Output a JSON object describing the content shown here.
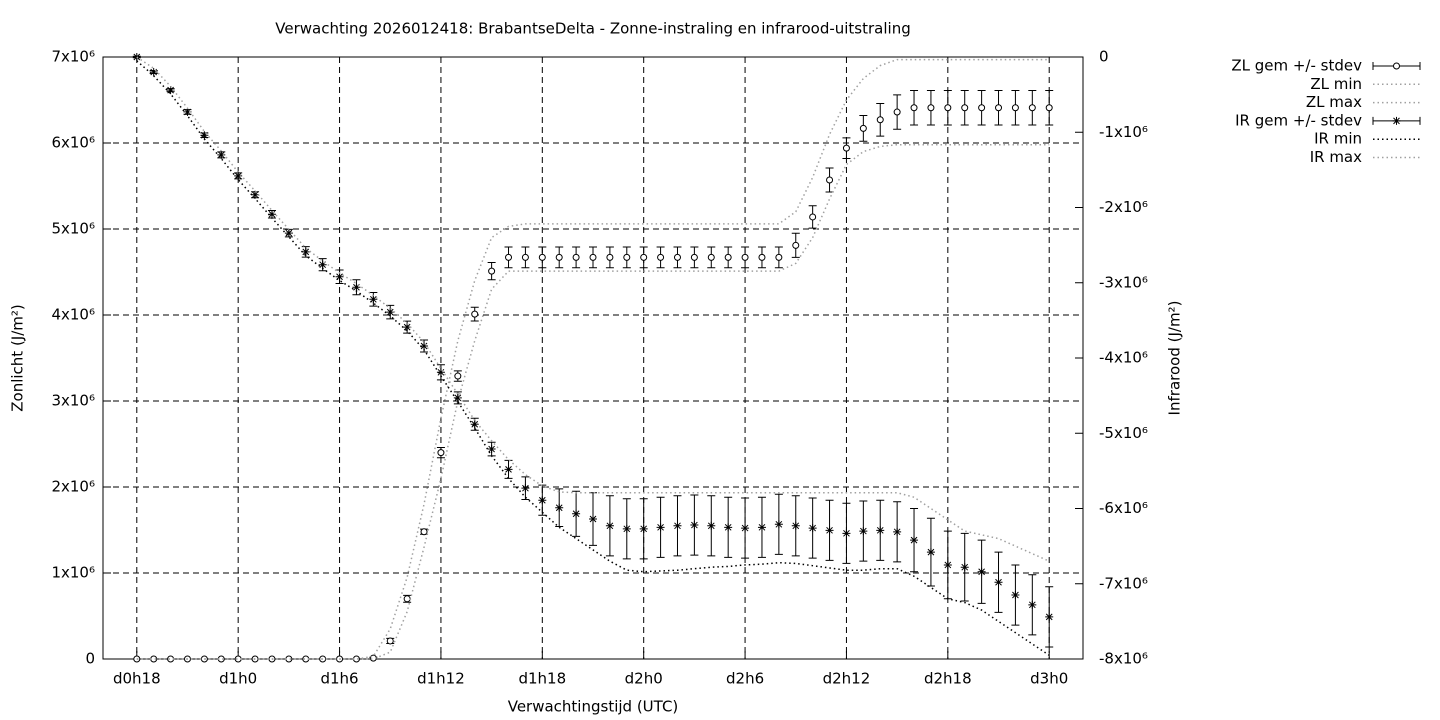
{
  "chart_data": {
    "type": "errorbar",
    "title": "Verwachting 2026012418: BrabantseDelta - Zonne-instraling en infrarood-uitstraling",
    "xlabel": "Verwachtingstijd (UTC)",
    "ylabel": "Zonlicht (J/m²)",
    "y2label": "Infrarood (J/m²)",
    "grid": true,
    "legend": "outside-top-right",
    "xlim": [
      16,
      74
    ],
    "xticks": [
      {
        "value": 18,
        "label": "d0h18"
      },
      {
        "value": 24,
        "label": "d1h0"
      },
      {
        "value": 30,
        "label": "d1h6"
      },
      {
        "value": 36,
        "label": "d1h12"
      },
      {
        "value": 42,
        "label": "d1h18"
      },
      {
        "value": 48,
        "label": "d2h0"
      },
      {
        "value": 54,
        "label": "d2h6"
      },
      {
        "value": 60,
        "label": "d2h12"
      },
      {
        "value": 66,
        "label": "d2h18"
      },
      {
        "value": 72,
        "label": "d3h0"
      }
    ],
    "ylim": [
      0,
      7000000.0
    ],
    "yticks": [
      0,
      {
        "value": 1000000.0,
        "label": "1x10⁶"
      },
      {
        "value": 2000000.0,
        "label": "2x10⁶"
      },
      {
        "value": 3000000.0,
        "label": "3x10⁶"
      },
      {
        "value": 4000000.0,
        "label": "4x10⁶"
      },
      {
        "value": 5000000.0,
        "label": "5x10⁶"
      },
      {
        "value": 6000000.0,
        "label": "6x10⁶"
      },
      {
        "value": 7000000.0,
        "label": "7x10⁶"
      }
    ],
    "y2lim": [
      -8000000.0,
      0
    ],
    "y2ticks": [
      0,
      {
        "value": -1000000.0,
        "label": "-1x10⁶"
      },
      {
        "value": -2000000.0,
        "label": "-2x10⁶"
      },
      {
        "value": -3000000.0,
        "label": "-3x10⁶"
      },
      {
        "value": -4000000.0,
        "label": "-4x10⁶"
      },
      {
        "value": -5000000.0,
        "label": "-5x10⁶"
      },
      {
        "value": -6000000.0,
        "label": "-6x10⁶"
      },
      {
        "value": -7000000.0,
        "label": "-7x10⁶"
      },
      {
        "value": -8000000.0,
        "label": "-8x10⁶"
      }
    ],
    "x": [
      18,
      19,
      20,
      21,
      22,
      23,
      24,
      25,
      26,
      27,
      28,
      29,
      30,
      31,
      32,
      33,
      34,
      35,
      36,
      37,
      38,
      39,
      40,
      41,
      42,
      43,
      44,
      45,
      46,
      47,
      48,
      49,
      50,
      51,
      52,
      53,
      54,
      55,
      56,
      57,
      58,
      59,
      60,
      61,
      62,
      63,
      64,
      65,
      66,
      67,
      68,
      69,
      70,
      71,
      72
    ],
    "series": [
      {
        "name": "ZL gem +/- stdev",
        "style": "errorbar",
        "marker": "circle",
        "color": "#000000",
        "axis": "y",
        "values": [
          0,
          0,
          0,
          0,
          0,
          0,
          0,
          0,
          0,
          0,
          0,
          0,
          0,
          0,
          10000.0,
          210000.0,
          700000.0,
          1480000.0,
          2400000.0,
          3290000.0,
          4010000.0,
          4510000.0,
          4670000.0,
          4670000.0,
          4670000.0,
          4670000.0,
          4670000.0,
          4670000.0,
          4670000.0,
          4670000.0,
          4670000.0,
          4670000.0,
          4670000.0,
          4670000.0,
          4670000.0,
          4670000.0,
          4670000.0,
          4670000.0,
          4670000.0,
          4810000.0,
          5140000.0,
          5570000.0,
          5940000.0,
          6170000.0,
          6270000.0,
          6360000.0,
          6410000.0,
          6410000.0,
          6410000.0,
          6410000.0,
          6410000.0,
          6410000.0,
          6410000.0,
          6410000.0,
          6410000.0
        ],
        "stdev": [
          0,
          0,
          0,
          0,
          0,
          0,
          0,
          0,
          0,
          0,
          0,
          0,
          0,
          0,
          10000.0,
          30000.0,
          40000.0,
          30000.0,
          60000.0,
          60000.0,
          80000.0,
          100000.0,
          120000.0,
          120000.0,
          120000.0,
          120000.0,
          120000.0,
          120000.0,
          120000.0,
          120000.0,
          120000.0,
          120000.0,
          120000.0,
          120000.0,
          120000.0,
          120000.0,
          120000.0,
          120000.0,
          120000.0,
          140000.0,
          130000.0,
          140000.0,
          120000.0,
          150000.0,
          190000.0,
          200000.0,
          200000.0,
          200000.0,
          200000.0,
          200000.0,
          200000.0,
          200000.0,
          200000.0,
          200000.0,
          200000.0
        ]
      },
      {
        "name": "ZL min",
        "style": "dotted",
        "color": "#a0a0a0",
        "axis": "y",
        "values": [
          0,
          0,
          0,
          0,
          0,
          0,
          0,
          0,
          0,
          0,
          0,
          0,
          0,
          0,
          0,
          80000.0,
          550000.0,
          1300000.0,
          2100000.0,
          3000000.0,
          3700000.0,
          4300000.0,
          4510000.0,
          4510000.0,
          4510000.0,
          4510000.0,
          4510000.0,
          4510000.0,
          4510000.0,
          4510000.0,
          4510000.0,
          4510000.0,
          4510000.0,
          4510000.0,
          4510000.0,
          4510000.0,
          4510000.0,
          4510000.0,
          4510000.0,
          4600000.0,
          4900000.0,
          5350000.0,
          5750000.0,
          5900000.0,
          5960000.0,
          5980000.0,
          5980000.0,
          5980000.0,
          5980000.0,
          5980000.0,
          5980000.0,
          5980000.0,
          5980000.0,
          5980000.0,
          5980000.0
        ]
      },
      {
        "name": "ZL max",
        "style": "dotted",
        "color": "#a0a0a0",
        "axis": "y",
        "values": [
          0,
          0,
          0,
          0,
          0,
          0,
          0,
          0,
          0,
          0,
          0,
          0,
          0,
          0,
          30000.0,
          350000.0,
          950000.0,
          1800000.0,
          2800000.0,
          3700000.0,
          4400000.0,
          4900000.0,
          5030000.0,
          5060000.0,
          5060000.0,
          5060000.0,
          5060000.0,
          5060000.0,
          5060000.0,
          5060000.0,
          5060000.0,
          5060000.0,
          5060000.0,
          5060000.0,
          5060000.0,
          5060000.0,
          5060000.0,
          5060000.0,
          5060000.0,
          5200000.0,
          5600000.0,
          6100000.0,
          6500000.0,
          6750000.0,
          6900000.0,
          6970000.0,
          6970000.0,
          6970000.0,
          6970000.0,
          6970000.0,
          6970000.0,
          6970000.0,
          6970000.0,
          6970000.0,
          6970000.0
        ]
      },
      {
        "name": "IR gem +/- stdev",
        "style": "errorbar",
        "marker": "star",
        "color": "#000000",
        "axis": "y2",
        "values": [
          0,
          -200000.0,
          -440000.0,
          -730000.0,
          -1040000.0,
          -1300000.0,
          -1580000.0,
          -1830000.0,
          -2090000.0,
          -2340000.0,
          -2590000.0,
          -2760000.0,
          -2920000.0,
          -3060000.0,
          -3220000.0,
          -3390000.0,
          -3590000.0,
          -3840000.0,
          -4190000.0,
          -4530000.0,
          -4880000.0,
          -5210000.0,
          -5480000.0,
          -5730000.0,
          -5890000.0,
          -5990000.0,
          -6070000.0,
          -6140000.0,
          -6230000.0,
          -6270000.0,
          -6270000.0,
          -6250000.0,
          -6230000.0,
          -6220000.0,
          -6230000.0,
          -6250000.0,
          -6260000.0,
          -6250000.0,
          -6210000.0,
          -6230000.0,
          -6260000.0,
          -6290000.0,
          -6330000.0,
          -6300000.0,
          -6290000.0,
          -6310000.0,
          -6420000.0,
          -6580000.0,
          -6750000.0,
          -6780000.0,
          -6840000.0,
          -6980000.0,
          -7150000.0,
          -7280000.0,
          -7440000.0
        ],
        "stdev": [
          10000.0,
          20000.0,
          20000.0,
          30000.0,
          30000.0,
          40000.0,
          40000.0,
          40000.0,
          50000.0,
          50000.0,
          70000.0,
          80000.0,
          90000.0,
          100000.0,
          90000.0,
          90000.0,
          80000.0,
          80000.0,
          100000.0,
          80000.0,
          80000.0,
          90000.0,
          120000.0,
          150000.0,
          200000.0,
          250000.0,
          300000.0,
          350000.0,
          400000.0,
          400000.0,
          400000.0,
          400000.0,
          400000.0,
          400000.0,
          400000.0,
          400000.0,
          400000.0,
          400000.0,
          400000.0,
          400000.0,
          400000.0,
          400000.0,
          400000.0,
          400000.0,
          400000.0,
          400000.0,
          420000.0,
          450000.0,
          450000.0,
          450000.0,
          420000.0,
          400000.0,
          400000.0,
          400000.0,
          400000.0
        ]
      },
      {
        "name": "IR min",
        "style": "dotted",
        "color": "#000000",
        "axis": "y2",
        "values": [
          -50000.0,
          -250000.0,
          -490000.0,
          -780000.0,
          -1090000.0,
          -1350000.0,
          -1630000.0,
          -1880000.0,
          -2140000.0,
          -2390000.0,
          -2640000.0,
          -2810000.0,
          -2970000.0,
          -3110000.0,
          -3270000.0,
          -3440000.0,
          -3640000.0,
          -3890000.0,
          -4240000.0,
          -4580000.0,
          -4930000.0,
          -5300000.0,
          -5600000.0,
          -5850000.0,
          -6050000.0,
          -6250000.0,
          -6400000.0,
          -6550000.0,
          -6700000.0,
          -6820000.0,
          -6840000.0,
          -6830000.0,
          -6820000.0,
          -6800000.0,
          -6780000.0,
          -6770000.0,
          -6750000.0,
          -6740000.0,
          -6720000.0,
          -6730000.0,
          -6760000.0,
          -6790000.0,
          -6820000.0,
          -6820000.0,
          -6800000.0,
          -6800000.0,
          -6900000.0,
          -7050000.0,
          -7200000.0,
          -7250000.0,
          -7350000.0,
          -7500000.0,
          -7650000.0,
          -7800000.0,
          -7950000.0
        ]
      },
      {
        "name": "IR max",
        "style": "dotted",
        "color": "#a0a0a0",
        "axis": "y2",
        "values": [
          0,
          -150000.0,
          -390000.0,
          -680000.0,
          -990000.0,
          -1250000.0,
          -1530000.0,
          -1780000.0,
          -2040000.0,
          -2290000.0,
          -2540000.0,
          -2710000.0,
          -2870000.0,
          -3010000.0,
          -3170000.0,
          -3340000.0,
          -3540000.0,
          -3790000.0,
          -4140000.0,
          -4480000.0,
          -4830000.0,
          -5100000.0,
          -5350000.0,
          -5550000.0,
          -5700000.0,
          -5780000.0,
          -5790000.0,
          -5790000.0,
          -5790000.0,
          -5790000.0,
          -5790000.0,
          -5790000.0,
          -5790000.0,
          -5790000.0,
          -5790000.0,
          -5790000.0,
          -5790000.0,
          -5790000.0,
          -5790000.0,
          -5790000.0,
          -5790000.0,
          -5790000.0,
          -5790000.0,
          -5790000.0,
          -5790000.0,
          -5790000.0,
          -5850000.0,
          -6000000.0,
          -6150000.0,
          -6300000.0,
          -6350000.0,
          -6400000.0,
          -6500000.0,
          -6600000.0,
          -6700000.0
        ]
      }
    ]
  }
}
